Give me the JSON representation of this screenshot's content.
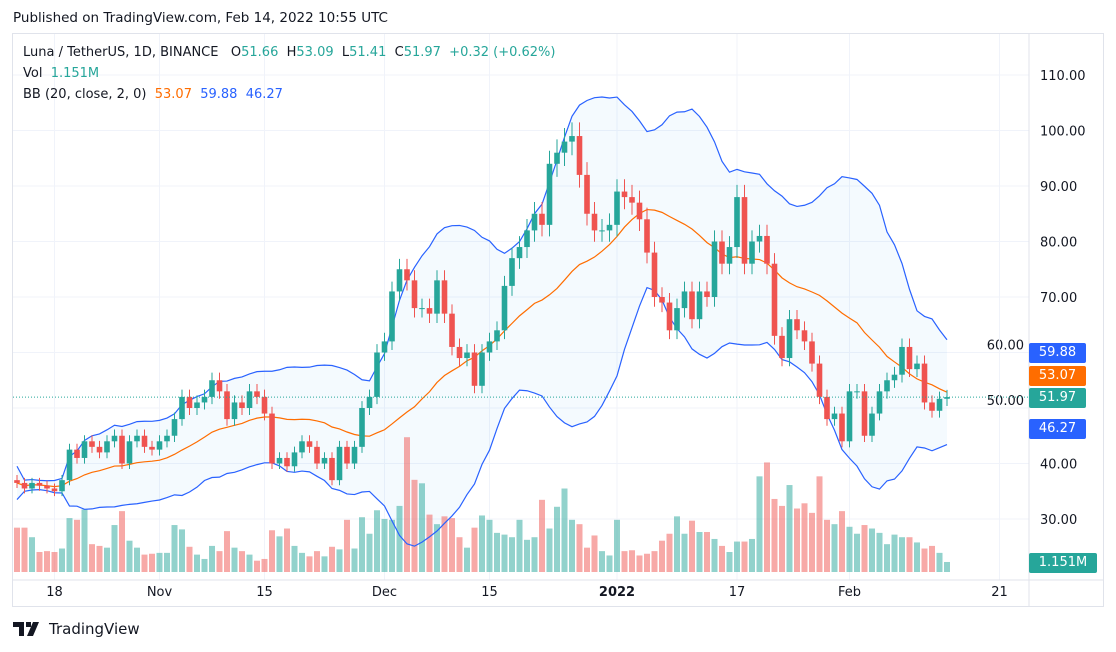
{
  "published": "Published on TradingView.com, Feb 14, 2022 10:55 UTC",
  "legend": {
    "symbol": "Luna / TetherUS, 1D, BINANCE",
    "o_label": "O",
    "o": "51.66",
    "h_label": "H",
    "h": "53.09",
    "l_label": "L",
    "l": "51.41",
    "c_label": "C",
    "c": "51.97",
    "change": "+0.32 (+0.62%)",
    "vol_label": "Vol",
    "vol": "1.151M",
    "bb_label": "BB (20, close, 2, 0)",
    "bb_basis": "53.07",
    "bb_upper": "59.88",
    "bb_lower": "46.27"
  },
  "price_tags": {
    "upper": "59.88",
    "basis": "53.07",
    "last": "51.97",
    "lower": "46.27",
    "volume": "1.151M"
  },
  "logo_text": "TradingView",
  "colors": {
    "up": "#26a69a",
    "down": "#ef5350",
    "bb_band": "#2962ff",
    "bb_basis": "#ff6d00"
  },
  "chart_data": {
    "type": "candlestick",
    "title": "Luna / TetherUS, 1D, BINANCE",
    "start_date": "2021-10-13",
    "end_date": "2022-02-14",
    "y_ticks": [
      "110.00",
      "100.00",
      "90.00",
      "80.00",
      "70.00",
      "60.00",
      "50.00",
      "40.00",
      "30.00"
    ],
    "x_ticks": [
      {
        "label": "18",
        "day": 5
      },
      {
        "label": "Nov",
        "day": 19
      },
      {
        "label": "15",
        "day": 33
      },
      {
        "label": "Dec",
        "day": 49
      },
      {
        "label": "15",
        "day": 63
      },
      {
        "label": "2022",
        "day": 80,
        "bold": true
      },
      {
        "label": "17",
        "day": 96
      },
      {
        "label": "Feb",
        "day": 111
      },
      {
        "label": "21",
        "day": 131
      }
    ],
    "first_open": 37,
    "close": [
      36.5,
      35.5,
      36.5,
      36,
      35.5,
      35,
      37,
      42.5,
      41,
      44,
      43,
      42,
      44,
      45,
      40,
      44,
      45,
      43,
      42.5,
      44,
      45,
      48,
      52,
      50,
      51,
      52,
      55,
      53,
      48,
      51,
      50,
      53,
      52,
      49,
      40,
      41,
      39.5,
      42,
      44,
      43,
      40,
      41,
      37,
      43,
      40,
      43,
      50,
      52,
      60,
      62,
      71,
      75,
      73,
      68,
      68,
      67,
      73,
      67,
      61,
      59,
      60,
      54,
      60,
      62,
      64,
      72,
      77,
      79,
      82,
      85,
      83,
      94,
      96,
      98,
      99,
      92,
      85,
      82,
      82,
      83,
      89,
      88,
      87,
      84,
      78,
      70,
      69,
      64,
      68,
      71,
      66,
      71,
      70,
      80,
      76,
      79,
      88,
      76,
      80,
      81,
      76,
      63,
      59,
      66,
      64,
      62,
      58,
      52,
      48,
      49,
      44,
      53,
      53,
      45,
      49,
      53,
      55,
      56,
      61,
      57,
      58,
      51,
      49.5,
      51.66,
      51.97
    ],
    "last_ohlc": {
      "open": 51.66,
      "high": 53.09,
      "low": 51.41,
      "close": 51.97
    },
    "volume_millions": [
      5.1,
      5.1,
      4.0,
      2.3,
      2.4,
      2.3,
      2.7,
      6.2,
      6.0,
      7.2,
      3.2,
      3.0,
      2.8,
      5.4,
      7.0,
      3.6,
      2.8,
      2.0,
      2.1,
      2.2,
      2.2,
      5.4,
      4.9,
      2.9,
      2.0,
      1.5,
      3.0,
      2.4,
      4.7,
      2.8,
      2.4,
      2.0,
      1.3,
      1.5,
      4.8,
      4.1,
      5.0,
      3.0,
      2.2,
      1.8,
      2.4,
      1.8,
      2.9,
      2.6,
      6.0,
      2.7,
      6.3,
      4.4,
      7.1,
      6.1,
      6.0,
      7.6,
      15.5,
      10.6,
      10.2,
      6.6,
      5.5,
      6.4,
      6.2,
      4.0,
      2.8,
      5.1,
      6.5,
      6.0,
      4.5,
      4.3,
      4.0,
      6.0,
      3.7,
      4.0,
      8.3,
      5.0,
      7.5,
      9.6,
      6.0,
      5.5,
      2.8,
      4.2,
      2.4,
      1.9,
      6.0,
      2.4,
      2.5,
      1.9,
      2.1,
      2.4,
      3.6,
      4.4,
      6.4,
      4.4,
      5.9,
      4.6,
      4.6,
      3.8,
      3.0,
      2.3,
      3.5,
      3.5,
      3.8,
      11.0,
      12.6,
      8.4,
      7.6,
      10.0,
      7.3,
      7.9,
      6.8,
      11.0,
      6.0,
      5.5,
      7.0,
      5.2,
      4.4,
      5.4,
      5.0,
      4.5,
      3.2,
      4.3,
      4.0,
      4.0,
      3.4,
      2.7,
      3.0,
      2.2,
      1.151
    ],
    "indicator": {
      "name": "Bollinger Bands",
      "length": 20,
      "source": "close",
      "mult": 2,
      "offset": 0,
      "last_basis": 53.07,
      "last_upper": 59.88,
      "last_lower": 46.27
    }
  }
}
